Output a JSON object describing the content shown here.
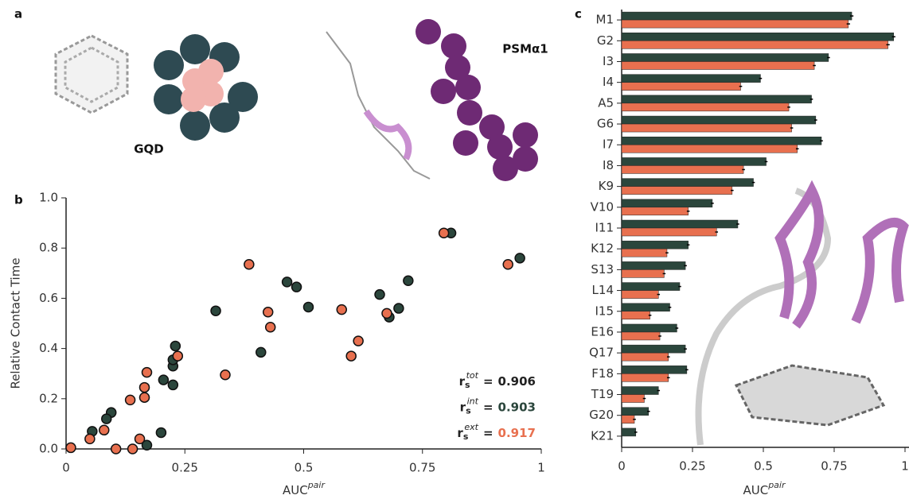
{
  "panel_a": {
    "panel_label": "a",
    "labels": [
      "GQD",
      "PSMα1"
    ]
  },
  "chart_data": [
    {
      "type": "scatter",
      "panel_label": "b",
      "y_label": "Relative Contact Time",
      "x_label": {
        "text": "AUC",
        "superscript": "pair"
      },
      "xlim": [
        0,
        1
      ],
      "xticks": [
        0,
        0.25,
        0.5,
        0.75,
        1
      ],
      "ylim": [
        0,
        1
      ],
      "yticks": [
        {
          "value": 0,
          "label": "0.0"
        },
        0.2,
        0.4,
        0.6,
        0.8,
        {
          "value": 1,
          "label": "1.0"
        }
      ],
      "series": [
        {
          "color": "#2b463c",
          "x": [
            0.055,
            0.095,
            0.085,
            0.17,
            0.2,
            0.205,
            0.225,
            0.225,
            0.225,
            0.23,
            0.315,
            0.41,
            0.465,
            0.485,
            0.51,
            0.66,
            0.68,
            0.7,
            0.72,
            0.81,
            0.955
          ],
          "values": [
            0.07,
            0.145,
            0.12,
            0.015,
            0.065,
            0.275,
            0.255,
            0.33,
            0.355,
            0.41,
            0.55,
            0.385,
            0.665,
            0.645,
            0.565,
            0.615,
            0.525,
            0.56,
            0.67,
            0.86,
            0.76
          ]
        },
        {
          "color": "#e8704f",
          "x": [
            0.01,
            0.05,
            0.08,
            0.105,
            0.14,
            0.155,
            0.135,
            0.165,
            0.165,
            0.17,
            0.235,
            0.335,
            0.385,
            0.425,
            0.43,
            0.58,
            0.6,
            0.615,
            0.675,
            0.795,
            0.93
          ],
          "values": [
            0.005,
            0.04,
            0.075,
            0,
            0,
            0.04,
            0.195,
            0.245,
            0.205,
            0.305,
            0.37,
            0.295,
            0.735,
            0.545,
            0.485,
            0.555,
            0.37,
            0.43,
            0.54,
            0.86,
            0.735
          ]
        }
      ],
      "annotations": [
        {
          "text": "r",
          "subscript": "s",
          "superscript": "tot",
          "relation": "=",
          "value": 0.906,
          "color": "#222222"
        },
        {
          "text": "r",
          "subscript": "s",
          "superscript": "int",
          "relation": "=",
          "value": 0.903,
          "color": "#2b463c"
        },
        {
          "text": "r",
          "subscript": "s",
          "superscript": "ext",
          "relation": "=",
          "value": 0.917,
          "color": "#e8704f"
        }
      ]
    },
    {
      "type": "bar",
      "orientation": "horizontal",
      "panel_label": "c",
      "x_label": {
        "text": "AUC",
        "superscript": "pair"
      },
      "xlim": [
        0,
        1
      ],
      "xticks": [
        0,
        0.25,
        0.5,
        0.75,
        1
      ],
      "categories": [
        "M1",
        "G2",
        "I3",
        "I4",
        "A5",
        "G6",
        "I7",
        "I8",
        "K9",
        "V10",
        "I11",
        "K12",
        "S13",
        "L14",
        "I15",
        "E16",
        "Q17",
        "F18",
        "T19",
        "G20",
        "K21"
      ],
      "series": [
        {
          "color": "#2b463c",
          "values": [
            0.812,
            0.96,
            0.73,
            0.49,
            0.67,
            0.685,
            0.705,
            0.51,
            0.465,
            0.32,
            0.41,
            0.235,
            0.225,
            0.205,
            0.17,
            0.195,
            0.225,
            0.23,
            0.13,
            0.095,
            0.05
          ],
          "errors": [
            0.006,
            0.006,
            0.005,
            0.005,
            0.005,
            0.005,
            0.005,
            0.005,
            0.005,
            0.005,
            0.005,
            0.005,
            0.005,
            0.005,
            0.005,
            0.005,
            0.005,
            0.005,
            0.005,
            0.005,
            0.005
          ]
        },
        {
          "color": "#e8704f",
          "values": [
            0.8,
            0.94,
            0.68,
            0.42,
            0.59,
            0.6,
            0.62,
            0.43,
            0.39,
            0.235,
            0.335,
            0.16,
            0.15,
            0.13,
            0.1,
            0.135,
            0.165,
            0.165,
            0.08,
            0.045,
            null
          ],
          "errors": [
            0.006,
            0.006,
            0.005,
            0.005,
            0.005,
            0.005,
            0.005,
            0.005,
            0.005,
            0.005,
            0.005,
            0.005,
            0.005,
            0.005,
            0.005,
            0.005,
            0.005,
            0.005,
            0.005,
            0.005,
            null
          ]
        }
      ]
    }
  ]
}
